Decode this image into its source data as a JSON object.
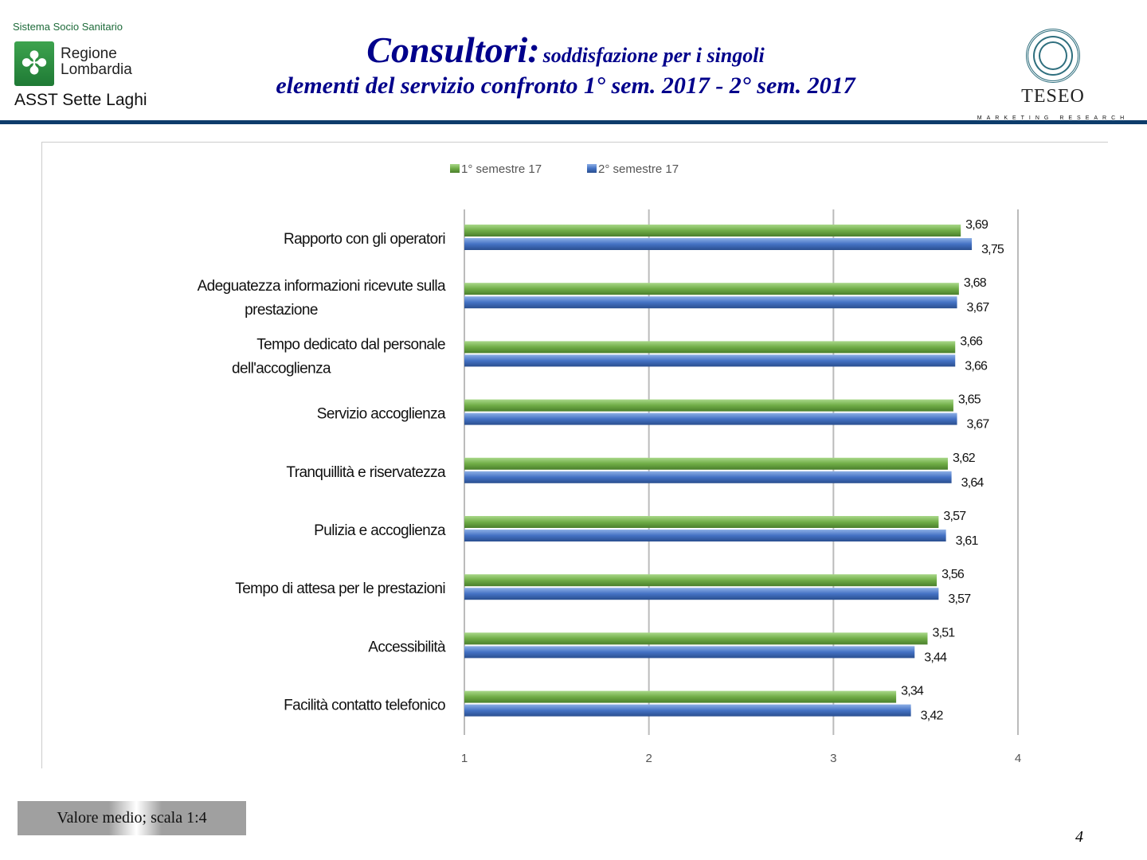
{
  "header": {
    "org_top": "Sistema Socio Sanitario",
    "org_region": "Regione Lombardia",
    "org_bottom": "ASST Sette Laghi",
    "title_main": "Consultori:",
    "title_rest": "soddisfazione per i singoli",
    "title_line2": "elementi del servizio confronto 1° sem. 2017 - 2° sem. 2017",
    "brand": "TESEO",
    "brand_sub": "MARKETING RESEARCH"
  },
  "footer": {
    "note": "Valore medio; scala 1:4",
    "page": "4"
  },
  "chart_data": {
    "type": "bar",
    "orientation": "horizontal",
    "title": "",
    "xlabel": "",
    "ylabel": "",
    "xlim": [
      1,
      4
    ],
    "xticks": [
      "1",
      "2",
      "3",
      "4"
    ],
    "grid": true,
    "legend": "top",
    "categories": [
      "Rapporto con gli operatori",
      "Adeguatezza informazioni ricevute sulla prestazione",
      "Tempo dedicato dal personale dell'accoglienza",
      "Servizio accoglienza",
      "Tranquillità e riservatezza",
      "Pulizia e accoglienza",
      "Tempo di attesa per le prestazioni",
      "Accessibilità",
      "Facilità contatto telefonico"
    ],
    "series": [
      {
        "name": "1° semestre 17",
        "color": "#70ad47",
        "values": [
          3.69,
          3.68,
          3.66,
          3.65,
          3.62,
          3.57,
          3.56,
          3.51,
          3.34
        ],
        "labels": [
          "3,69",
          "3,68",
          "3,66",
          "3,65",
          "3,62",
          "3,57",
          "3,56",
          "3,51",
          "3,34"
        ]
      },
      {
        "name": "2° semestre 17",
        "color": "#4472c4",
        "values": [
          3.75,
          3.67,
          3.66,
          3.67,
          3.64,
          3.61,
          3.57,
          3.44,
          3.42
        ],
        "labels": [
          "3,75",
          "3,67",
          "3,66",
          "3,67",
          "3,64",
          "3,61",
          "3,57",
          "3,44",
          "3,42"
        ]
      }
    ]
  }
}
